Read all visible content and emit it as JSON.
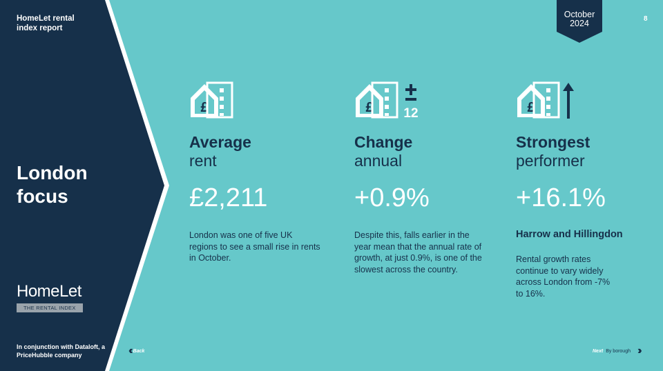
{
  "report_title": "HomeLet rental index report",
  "section_title": "London focus",
  "logo": {
    "word": "HomeLet",
    "band": "THE RENTAL INDEX"
  },
  "footer": "In conjunction with Dataloft, a PriceHubble company",
  "date": {
    "month": "October",
    "year": "2024"
  },
  "page_number": "8",
  "columns": [
    {
      "icon": "house-pound-icon",
      "heading": "Average",
      "subheading": "rent",
      "value": "£2,211",
      "text": "London was one of five UK regions to see a small rise in rents in October."
    },
    {
      "icon": "house-pound-plusminus-12-icon",
      "icon_extra": "12",
      "heading": "Change",
      "subheading": "annual",
      "value": "+0.9%",
      "text": "Despite this, falls earlier in the year mean that the annual rate of growth, at just 0.9%, is one of the slowest across the country."
    },
    {
      "icon": "house-pound-arrow-up-icon",
      "heading": "Strongest",
      "subheading": "performer",
      "value": "+16.1%",
      "subtitle": "Harrow and Hillingdon",
      "text": "Rental growth rates continue to vary widely across London from -7% to 16%."
    }
  ],
  "nav": {
    "back": "Back",
    "next": "Next",
    "next_sub": "By borough"
  },
  "colors": {
    "navy": "#16304a",
    "teal": "#66c8ca",
    "white": "#ffffff"
  }
}
